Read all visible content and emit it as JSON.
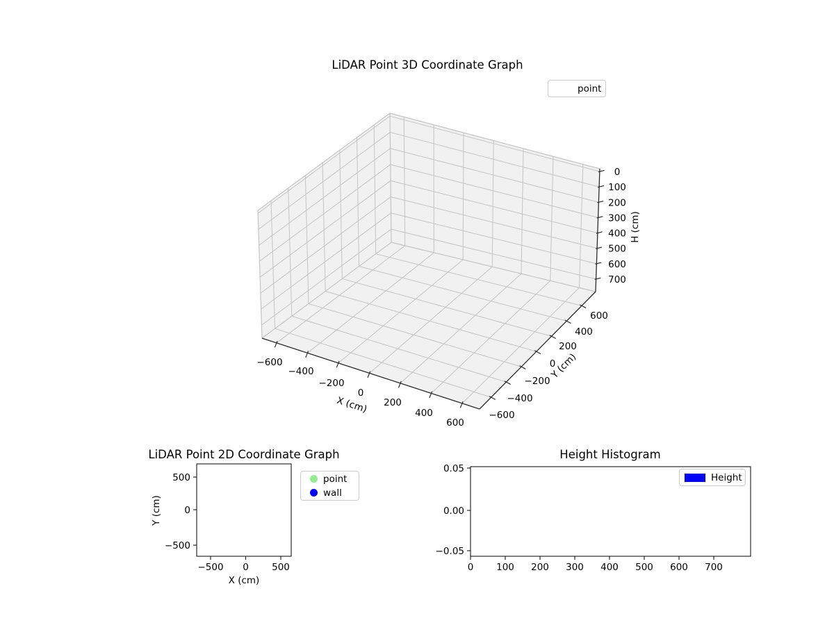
{
  "plot3d": {
    "title": "LiDAR Point 3D Coordinate Graph",
    "xlabel": "X (cm)",
    "ylabel": "Y (cm)",
    "zlabel": "H (cm)",
    "x_tick_labels": [
      "−600",
      "−400",
      "−200",
      "0",
      "200",
      "400",
      "600"
    ],
    "y_tick_labels": [
      "−600",
      "−400",
      "−200",
      "0",
      "200",
      "400",
      "600"
    ],
    "z_tick_labels": [
      "0",
      "100",
      "200",
      "300",
      "400",
      "500",
      "600",
      "700"
    ],
    "legend_items": [
      {
        "label": "point",
        "marker": "none"
      }
    ]
  },
  "plot2d": {
    "title": "LiDAR Point 2D Coordinate Graph",
    "xlabel": "X (cm)",
    "ylabel": "Y (cm)",
    "x_tick_labels": [
      "−500",
      "0",
      "500"
    ],
    "y_tick_labels": [
      "500",
      "0",
      "−500"
    ],
    "legend_items": [
      {
        "label": "point",
        "color": "#90ee90"
      },
      {
        "label": "wall",
        "color": "#0000ff"
      }
    ]
  },
  "histogram": {
    "title": "Height Histogram",
    "x_tick_labels": [
      "0",
      "100",
      "200",
      "300",
      "400",
      "500",
      "600",
      "700"
    ],
    "y_tick_labels": [
      "0.05",
      "0.00",
      "−0.05"
    ],
    "legend_items": [
      {
        "label": "Height",
        "color": "#0000ff"
      }
    ]
  },
  "colors": {
    "pane": "#f1f1f1",
    "grid": "#c4c4c4",
    "axis_line": "#2b2b2b",
    "spine": "#000000",
    "legend_border": "#cccccc"
  },
  "chart_data": [
    {
      "type": "scatter",
      "projection": "3d",
      "title": "LiDAR Point 3D Coordinate Graph",
      "xlabel": "X (cm)",
      "ylabel": "Y (cm)",
      "zlabel": "H (cm)",
      "x_ticks": [
        -600,
        -400,
        -200,
        0,
        200,
        400,
        600
      ],
      "y_ticks": [
        -600,
        -400,
        -200,
        0,
        200,
        400,
        600
      ],
      "z_ticks": [
        0,
        100,
        200,
        300,
        400,
        500,
        600,
        700
      ],
      "xlim": [
        -700,
        700
      ],
      "ylim": [
        -700,
        700
      ],
      "zlim": [
        0,
        750
      ],
      "z_axis_inverted": true,
      "grid": true,
      "legend_position": "upper right",
      "series": [
        {
          "name": "point",
          "x": [],
          "y": [],
          "z": []
        }
      ]
    },
    {
      "type": "scatter",
      "title": "LiDAR Point 2D Coordinate Graph",
      "xlabel": "X (cm)",
      "ylabel": "Y (cm)",
      "x_ticks": [
        -500,
        0,
        500
      ],
      "y_ticks": [
        -500,
        0,
        500
      ],
      "xlim": [
        -700,
        700
      ],
      "ylim": [
        -700,
        700
      ],
      "grid": false,
      "legend_position": "outside upper right",
      "series": [
        {
          "name": "point",
          "color": "#90ee90",
          "x": [],
          "y": []
        },
        {
          "name": "wall",
          "color": "#0000ff",
          "x": [],
          "y": []
        }
      ]
    },
    {
      "type": "bar",
      "title": "Height Histogram",
      "x_ticks": [
        0,
        100,
        200,
        300,
        400,
        500,
        600,
        700
      ],
      "y_ticks": [
        -0.05,
        0.0,
        0.05
      ],
      "xlim": [
        0,
        806
      ],
      "ylim": [
        -0.057,
        0.052
      ],
      "grid": false,
      "legend_position": "upper right",
      "series": [
        {
          "name": "Height",
          "color": "#0000ff",
          "values": []
        }
      ]
    }
  ]
}
